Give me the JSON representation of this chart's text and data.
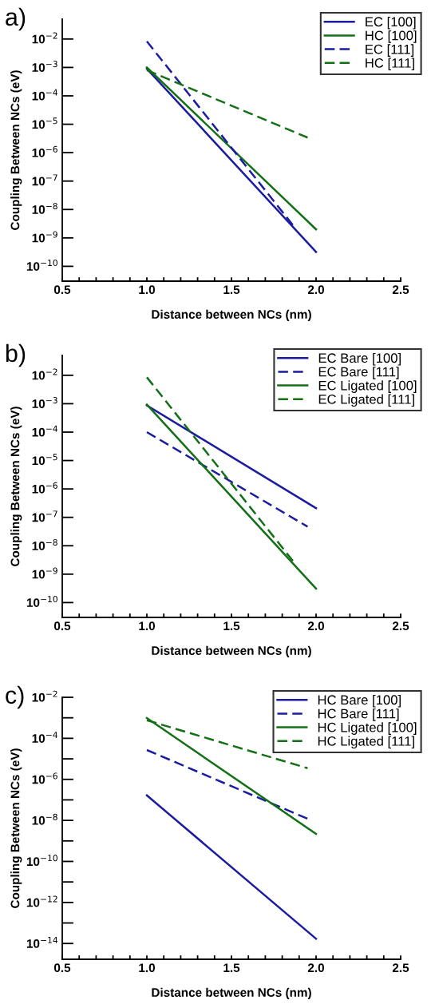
{
  "chart_data": [
    {
      "type": "line",
      "title": "a)",
      "xlabel": "Distance between NCs (nm)",
      "ylabel": "Coupling Between NCs (eV)",
      "log": "y",
      "legend": "top right",
      "grid": false,
      "marker": "none",
      "xlim": [
        0.5,
        2.5
      ],
      "xticks": [
        0.5,
        {
          "value": 0.6,
          "label": null
        },
        {
          "value": 0.7,
          "label": null
        },
        {
          "value": 0.8,
          "label": null
        },
        {
          "value": 0.9,
          "label": null
        },
        {
          "value": 1.0,
          "label": "1.0"
        },
        {
          "value": 1.1,
          "label": null
        },
        {
          "value": 1.2,
          "label": null
        },
        {
          "value": 1.3,
          "label": null
        },
        {
          "value": 1.4,
          "label": null
        },
        1.5,
        {
          "value": 1.6,
          "label": null
        },
        {
          "value": 1.7,
          "label": null
        },
        {
          "value": 1.8,
          "label": null
        },
        {
          "value": 1.9,
          "label": null
        },
        {
          "value": 2.0,
          "label": "2.0"
        },
        {
          "value": 2.1,
          "label": null
        },
        {
          "value": 2.2,
          "label": null
        },
        {
          "value": 2.3,
          "label": null
        },
        {
          "value": 2.4,
          "label": null
        },
        2.5
      ],
      "ylim": [
        3e-11,
        0.05
      ],
      "yticks": [
        {
          "value": 1e-10,
          "label": "10$^{−10}$"
        },
        {
          "value": 1e-09,
          "label": "10$^{−9}$"
        },
        {
          "value": 1e-08,
          "label": "10$^{−8}$"
        },
        {
          "value": 1e-07,
          "label": "10$^{−7}$"
        },
        {
          "value": 1e-06,
          "label": "10$^{−6}$"
        },
        {
          "value": 1e-05,
          "label": "10$^{−5}$"
        },
        {
          "value": 0.0001,
          "label": "10$^{−4}$"
        },
        {
          "value": 0.001,
          "label": "10$^{−3}$"
        },
        {
          "value": 0.01,
          "label": "10$^{−2}$"
        }
      ],
      "series": [
        {
          "name": "EC [100]",
          "color": "#1c1ca0",
          "line_style": "solid",
          "x": [
            1.0,
            2.0
          ],
          "values": [
            0.0009,
            3.2e-10
          ]
        },
        {
          "name": "HC [100]",
          "color": "#137016",
          "line_style": "solid",
          "x": [
            1.0,
            2.0
          ],
          "values": [
            0.001,
            2e-09
          ]
        },
        {
          "name": "EC [111]",
          "color": "#1c1ca0",
          "line_style": "dashed",
          "x": [
            1.0,
            1.87
          ],
          "values": [
            0.0083,
            2.5e-09
          ]
        },
        {
          "name": "HC [111]",
          "color": "#137016",
          "line_style": "dashed",
          "x": [
            1.0,
            1.95
          ],
          "values": [
            0.0008,
            3.4e-06
          ]
        }
      ]
    },
    {
      "type": "line",
      "title": "b)",
      "xlabel": "Distance between NCs (nm)",
      "ylabel": "Coupling Between NCs (eV)",
      "log": "y",
      "legend": "top right",
      "grid": false,
      "marker": "none",
      "xlim": [
        0.5,
        2.5
      ],
      "xticks": [
        0.5,
        {
          "value": 0.6,
          "label": null
        },
        {
          "value": 0.7,
          "label": null
        },
        {
          "value": 0.8,
          "label": null
        },
        {
          "value": 0.9,
          "label": null
        },
        {
          "value": 1.0,
          "label": "1.0"
        },
        {
          "value": 1.1,
          "label": null
        },
        {
          "value": 1.2,
          "label": null
        },
        {
          "value": 1.3,
          "label": null
        },
        {
          "value": 1.4,
          "label": null
        },
        1.5,
        {
          "value": 1.6,
          "label": null
        },
        {
          "value": 1.7,
          "label": null
        },
        {
          "value": 1.8,
          "label": null
        },
        {
          "value": 1.9,
          "label": null
        },
        {
          "value": 2.0,
          "label": "2.0"
        },
        {
          "value": 2.1,
          "label": null
        },
        {
          "value": 2.2,
          "label": null
        },
        {
          "value": 2.3,
          "label": null
        },
        {
          "value": 2.4,
          "label": null
        },
        2.5
      ],
      "ylim": [
        3e-11,
        0.05
      ],
      "yticks": [
        {
          "value": 1e-10,
          "label": "10$^{−10}$"
        },
        {
          "value": 1e-09,
          "label": "10$^{−9}$"
        },
        {
          "value": 1e-08,
          "label": "10$^{−8}$"
        },
        {
          "value": 1e-07,
          "label": "10$^{−7}$"
        },
        {
          "value": 1e-06,
          "label": "10$^{−6}$"
        },
        {
          "value": 1e-05,
          "label": "10$^{−5}$"
        },
        {
          "value": 0.0001,
          "label": "10$^{−4}$"
        },
        {
          "value": 0.001,
          "label": "10$^{−3}$"
        },
        {
          "value": 0.01,
          "label": "10$^{−2}$"
        }
      ],
      "series": [
        {
          "name": "EC Bare [100]",
          "color": "#1c1ca0",
          "line_style": "solid",
          "x": [
            1.0,
            2.0
          ],
          "values": [
            0.00087,
            2.1e-07
          ]
        },
        {
          "name": "EC Bare [111]",
          "color": "#1c1ca0",
          "line_style": "dashed",
          "x": [
            1.0,
            1.95
          ],
          "values": [
            0.0001,
            4.7e-08
          ]
        },
        {
          "name": "EC Ligated [100]",
          "color": "#137016",
          "line_style": "solid",
          "x": [
            1.0,
            2.0
          ],
          "values": [
            0.00093,
            3.1e-10
          ]
        },
        {
          "name": "EC Ligated [111]",
          "color": "#137016",
          "line_style": "dashed",
          "x": [
            1.0,
            1.87
          ],
          "values": [
            0.0085,
            2.6e-09
          ]
        }
      ]
    },
    {
      "type": "line",
      "title": "c)",
      "xlabel": "Distance between NCs (nm)",
      "ylabel": "Coupling Between NCs (eV)",
      "log": "y",
      "legend": "top right",
      "grid": false,
      "marker": "none",
      "xlim": [
        0.5,
        2.5
      ],
      "xticks": [
        0.5,
        {
          "value": 0.6,
          "label": null
        },
        {
          "value": 0.7,
          "label": null
        },
        {
          "value": 0.8,
          "label": null
        },
        {
          "value": 0.9,
          "label": null
        },
        {
          "value": 1.0,
          "label": "1.0"
        },
        {
          "value": 1.1,
          "label": null
        },
        {
          "value": 1.2,
          "label": null
        },
        {
          "value": 1.3,
          "label": null
        },
        {
          "value": 1.4,
          "label": null
        },
        1.5,
        {
          "value": 1.6,
          "label": null
        },
        {
          "value": 1.7,
          "label": null
        },
        {
          "value": 1.8,
          "label": null
        },
        {
          "value": 1.9,
          "label": null
        },
        {
          "value": 2.0,
          "label": "2.0"
        },
        {
          "value": 2.1,
          "label": null
        },
        {
          "value": 2.2,
          "label": null
        },
        {
          "value": 2.3,
          "label": null
        },
        {
          "value": 2.4,
          "label": null
        },
        2.5
      ],
      "ylim": [
        1.7e-15,
        0.01
      ],
      "yticks": [
        {
          "value": 1e-14,
          "label": "10$^{−14}$"
        },
        {
          "value": 1e-13,
          "label": null
        },
        {
          "value": 1e-12,
          "label": "10$^{−12}$"
        },
        {
          "value": 1e-11,
          "label": null
        },
        {
          "value": 1e-10,
          "label": "10$^{−10}$"
        },
        {
          "value": 1e-09,
          "label": null
        },
        {
          "value": 1e-08,
          "label": "10$^{−8}$"
        },
        {
          "value": 1e-07,
          "label": null
        },
        {
          "value": 1e-06,
          "label": "10$^{−6}$"
        },
        {
          "value": 1e-05,
          "label": null
        },
        {
          "value": 0.0001,
          "label": "10$^{−4}$"
        },
        {
          "value": 0.001,
          "label": null
        },
        {
          "value": 0.01,
          "label": "10$^{−2}$"
        }
      ],
      "series": [
        {
          "name": "HC Bare [100]",
          "color": "#1c1ca0",
          "line_style": "solid",
          "x": [
            1.0,
            2.0
          ],
          "values": [
            1.66e-07,
            1.7e-14
          ]
        },
        {
          "name": "HC Bare [111]",
          "color": "#1c1ca0",
          "line_style": "dashed",
          "x": [
            1.0,
            1.95
          ],
          "values": [
            2.7e-05,
            1.2e-08
          ]
        },
        {
          "name": "HC Ligated [100]",
          "color": "#137016",
          "line_style": "solid",
          "x": [
            1.0,
            2.0
          ],
          "values": [
            0.00097,
            2.2e-09
          ]
        },
        {
          "name": "HC Ligated [111]",
          "color": "#137016",
          "line_style": "dashed",
          "x": [
            1.0,
            1.95
          ],
          "values": [
            0.00076,
            3.5e-06
          ]
        }
      ]
    }
  ]
}
